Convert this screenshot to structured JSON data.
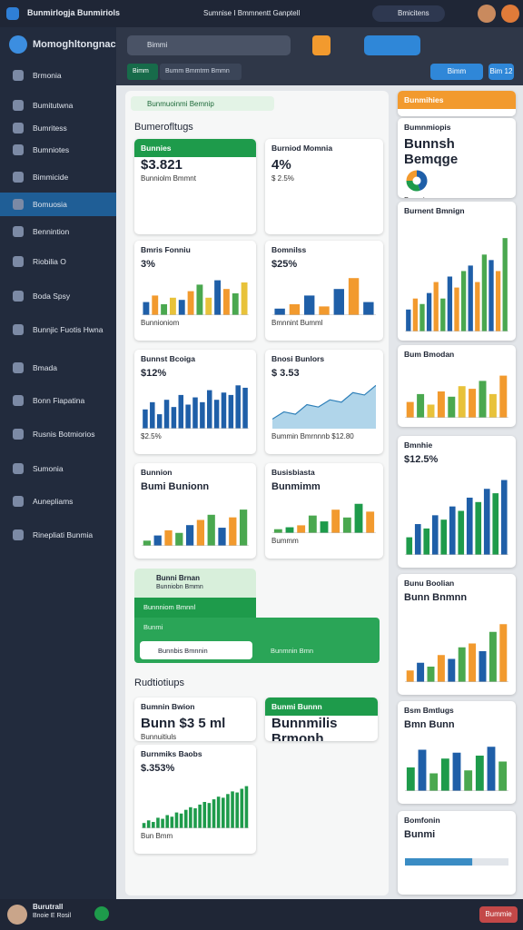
{
  "topbar": {
    "app": "Bunmirlogja Bunmiriols",
    "center": "Sumnise I Bmmnentt Ganptell",
    "user": "Bmicitens"
  },
  "sidebar": {
    "brand": "Momoghltongnacia",
    "active": 5,
    "items": [
      "Brmonia",
      "Bumitutwna",
      "Bumritess",
      "Bumniotes",
      "Bimmicide",
      "Bomuosia",
      "Bennintion",
      "Riobilia O",
      "Boda Spsy",
      "Bunnjic Fuotis Hwna",
      "Bmada",
      "Bonn Fiapatina",
      "Rusnis Botmiorios",
      "Sumonia",
      "Aunepliams",
      "Rinepliati Bunmia"
    ],
    "footer_name": "Burutrall",
    "footer_sub": "Bnoie E Rosil"
  },
  "toolbar": {
    "search": "Bimmi",
    "tab1": "Bimm",
    "tab2": "Bumm Bmmtrm Bmmn",
    "btn1": "Bimm",
    "btn2": "Bim 12"
  },
  "main": {
    "banner": "Bunmuoinmi Bemnip",
    "section1": "Bumerofltugs",
    "section2": "Rudtiotiups",
    "expander": {
      "title": "Bunni Brnan",
      "sub": "Bunniobn Bmmn",
      "row1": "Bunnniom Bmnnl",
      "row2": "Bunmi",
      "input": "Bunnbis Bmnnin",
      "row3": "Bunmnin Bmn"
    },
    "footer_button": "Bummie"
  },
  "cards": [
    {
      "title": "Bunnies",
      "value": "$3.821",
      "note": "Bunniolm Bmmnt",
      "header_color": "#1e9b4b"
    },
    {
      "title": "Burniod Momnia",
      "value": "4%",
      "note": "$ 2.5%"
    },
    {
      "title": "Bmris Fonniu",
      "value": "3%",
      "note": "Bunnioniom",
      "chart": {
        "type": "bar",
        "ylim": [
          0,
          100
        ],
        "colors": [
          "#1f5fa8",
          "#f29a2e",
          "#4aa84f",
          "#e8c23a"
        ],
        "values": [
          30,
          45,
          25,
          40,
          35,
          55,
          70,
          40,
          80,
          60,
          50,
          75
        ]
      }
    },
    {
      "title": "Bomnilss",
      "value": "$25%",
      "note": "Bmnnint Bumml",
      "chart": {
        "type": "bar",
        "ylim": [
          0,
          100
        ],
        "colors": [
          "#1f5fa8",
          "#f29a2e"
        ],
        "values": [
          15,
          25,
          45,
          20,
          60,
          85,
          30
        ]
      }
    },
    {
      "title": "Bunnst Bcoiga",
      "value": "$12%",
      "note": "$2.5%",
      "chart": {
        "type": "bar",
        "ylim": [
          0,
          100
        ],
        "colors": [
          "#1f5fa8"
        ],
        "values": [
          40,
          55,
          30,
          60,
          45,
          70,
          50,
          65,
          55,
          80,
          60,
          75,
          70,
          90,
          85
        ]
      }
    },
    {
      "title": "Bnosi Bunlors",
      "value": "$ 3.53",
      "note": "Bummin Bmrnnnb $12.80",
      "chart": {
        "type": "line",
        "ylim": [
          0,
          100
        ],
        "colors": [
          "#6fb3d8"
        ],
        "values": [
          20,
          35,
          30,
          50,
          45,
          60,
          55,
          75,
          70,
          90
        ]
      }
    },
    {
      "title": "Bunnion",
      "value": "Bumi Bunionn",
      "chart": {
        "type": "bar",
        "ylim": [
          0,
          100
        ],
        "colors": [
          "#4aa84f",
          "#1f5fa8",
          "#f29a2e"
        ],
        "values": [
          10,
          20,
          30,
          25,
          40,
          50,
          60,
          35,
          55,
          70
        ]
      }
    },
    {
      "title": "Busisbiasta",
      "value": "Bunmimm",
      "note": "Bummm",
      "chart": {
        "type": "bar",
        "ylim": [
          0,
          100
        ],
        "colors": [
          "#4aa84f",
          "#1e9b4b",
          "#f29a2e"
        ],
        "values": [
          10,
          15,
          20,
          45,
          30,
          60,
          40,
          75,
          55
        ]
      }
    },
    {
      "title": "Bumnin Bwion",
      "value": "Bunn $3 5 ml",
      "note": "Bunnuitiuls"
    },
    {
      "title": "Bunmi Bunnn",
      "value": "Bunnmilis Brmonh",
      "header_color": "#1e9b4b"
    },
    {
      "title": "Burnmiks Baobs",
      "value": "$.353%",
      "note": "Bun Bmm",
      "chart": {
        "type": "bar",
        "ylim": [
          0,
          100
        ],
        "colors": [
          "#1e9b4b"
        ],
        "values": [
          10,
          15,
          12,
          20,
          18,
          25,
          22,
          30,
          28,
          35,
          40,
          38,
          45,
          50,
          48,
          55,
          60,
          58,
          65,
          70,
          68,
          75,
          80
        ]
      }
    },
    {
      "title": "Bunmihies",
      "header_color": "#f29a2e"
    },
    {
      "title": "Bumnmiopis",
      "value": "Bunnsh Bemqge",
      "note": "Bunmi",
      "chart": {
        "type": "donut",
        "colors": [
          "#1f5fa8",
          "#1e9b4b",
          "#f29a2e"
        ],
        "values": [
          45,
          30,
          25
        ]
      }
    },
    {
      "title": "Burnent Bmnign",
      "chart": {
        "type": "bar",
        "ylim": [
          0,
          100
        ],
        "colors": [
          "#1f5fa8",
          "#f29a2e",
          "#4aa84f"
        ],
        "values": [
          20,
          30,
          25,
          35,
          45,
          30,
          50,
          40,
          55,
          60,
          45,
          70,
          65,
          55,
          85
        ]
      }
    },
    {
      "title": "Bum Bmodan",
      "chart": {
        "type": "bar",
        "ylim": [
          0,
          100
        ],
        "colors": [
          "#f29a2e",
          "#4aa84f",
          "#e8c23a"
        ],
        "values": [
          30,
          45,
          25,
          50,
          40,
          60,
          55,
          70,
          45,
          80
        ]
      }
    },
    {
      "title": "Bmnhie",
      "value": "$12.5%",
      "chart": {
        "type": "bar",
        "ylim": [
          0,
          100
        ],
        "colors": [
          "#1e9b4b",
          "#1f5fa8"
        ],
        "values": [
          20,
          35,
          30,
          45,
          40,
          55,
          50,
          65,
          60,
          75,
          70,
          85
        ]
      }
    },
    {
      "title": "Bunu Boolian",
      "value": "Bunn Bnmnn",
      "chart": {
        "type": "bar",
        "ylim": [
          0,
          100
        ],
        "colors": [
          "#f29a2e",
          "#1f5fa8",
          "#4aa84f"
        ],
        "values": [
          15,
          25,
          20,
          35,
          30,
          45,
          50,
          40,
          65,
          75
        ]
      }
    },
    {
      "title": "Bsm Bmtlugs",
      "value": "Bmn Bunn",
      "chart": {
        "type": "bar",
        "ylim": [
          0,
          100
        ],
        "colors": [
          "#1e9b4b",
          "#1f5fa8",
          "#4aa84f"
        ],
        "values": [
          40,
          70,
          30,
          55,
          65,
          35,
          60,
          75,
          50
        ]
      }
    },
    {
      "title": "Bomfonin",
      "value": "Bunmi",
      "chart": {
        "type": "progress",
        "ylim": [
          0,
          100
        ],
        "colors": [
          "#3a8cc4"
        ],
        "values": [
          65
        ]
      }
    }
  ]
}
